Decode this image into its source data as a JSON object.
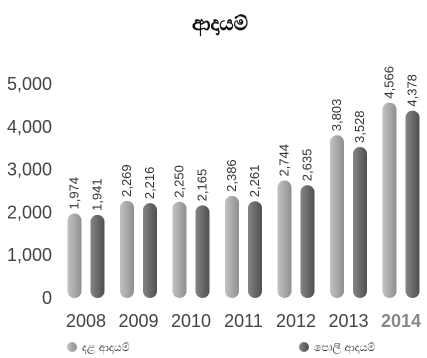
{
  "chart_data": {
    "type": "bar",
    "title": "ආදායම්",
    "xlabel": "",
    "ylabel": "",
    "ylim": [
      0,
      5000
    ],
    "yticks": [
      "0",
      "1,000",
      "2,000",
      "3,000",
      "4,000",
      "5,000"
    ],
    "categories": [
      "2008",
      "2009",
      "2010",
      "2011",
      "2012",
      "2013",
      "2014"
    ],
    "highlight_category": "2014",
    "grid": false,
    "legend_position": "bottom",
    "series": [
      {
        "name": "දළ ආදායම්",
        "color": "#a7a7a7",
        "values": [
          1974,
          2269,
          2250,
          2386,
          2744,
          3803,
          4566
        ],
        "labels": [
          "1,974",
          "2,269",
          "2,250",
          "2,386",
          "2,744",
          "3,803",
          "4,566"
        ]
      },
      {
        "name": "පොලී ආදායම්",
        "color": "#6b6b6b",
        "values": [
          1941,
          2216,
          2165,
          2261,
          2635,
          3528,
          4378
        ],
        "labels": [
          "1,941",
          "2,216",
          "2,165",
          "2,261",
          "2,635",
          "3,528",
          "4,378"
        ]
      }
    ]
  }
}
